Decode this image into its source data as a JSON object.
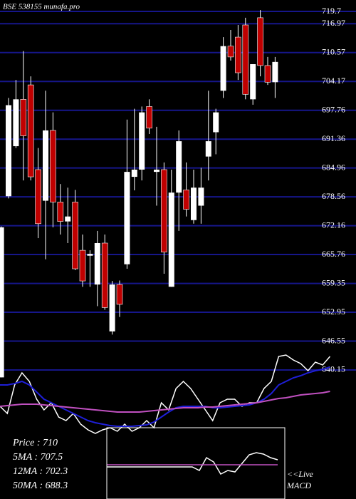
{
  "chart_data": [
    {
      "type": "candlestick",
      "title": "BSE 538155 munafa.pro",
      "ylim": [
        636,
        722
      ],
      "yticks": [
        719.7,
        716.97,
        710.57,
        704.17,
        697.76,
        691.36,
        684.96,
        678.56,
        672.16,
        665.76,
        659.35,
        652.95,
        646.55,
        640.15
      ],
      "grid": true,
      "grid_color": "#16168a",
      "up_color": "#ffffff",
      "down_color": "#c00000",
      "candles": [
        {
          "open": 638.5,
          "high": 672,
          "low": 638.5,
          "close": 671.8
        },
        {
          "open": 678.7,
          "high": 700.5,
          "low": 678.2,
          "close": 698.9
        },
        {
          "open": 689.8,
          "high": 704.5,
          "low": 689.4,
          "close": 700.2
        },
        {
          "open": 700.2,
          "high": 710.9,
          "low": 682.2,
          "close": 692.1
        },
        {
          "open": 703.4,
          "high": 705.3,
          "low": 682.2,
          "close": 683.0
        },
        {
          "open": 684.6,
          "high": 689.4,
          "low": 669.4,
          "close": 672.6
        },
        {
          "open": 677.7,
          "high": 702.1,
          "low": 664.7,
          "close": 693.3
        },
        {
          "open": 693.3,
          "high": 697.3,
          "low": 671.8,
          "close": 677.4
        },
        {
          "open": 677.4,
          "high": 681.4,
          "low": 670.2,
          "close": 673.1
        },
        {
          "open": 673.1,
          "high": 680.6,
          "low": 668.3,
          "close": 674.2
        },
        {
          "open": 677.4,
          "high": 680.1,
          "low": 662.3,
          "close": 662.6
        },
        {
          "open": 666.7,
          "high": 670.2,
          "low": 658.6,
          "close": 659.9
        },
        {
          "open": 665.5,
          "high": 666.7,
          "low": 658.6,
          "close": 665.9
        },
        {
          "open": 659.1,
          "high": 671.0,
          "low": 654.3,
          "close": 668.3
        },
        {
          "open": 668.3,
          "high": 670.2,
          "low": 653.5,
          "close": 654.0
        },
        {
          "open": 648.7,
          "high": 659.9,
          "low": 648.0,
          "close": 659.1
        },
        {
          "open": 659.1,
          "high": 660.0,
          "low": 651.9,
          "close": 654.7
        },
        {
          "open": 663.6,
          "high": 695.7,
          "low": 662.6,
          "close": 684.1
        },
        {
          "open": 683.0,
          "high": 698.1,
          "low": 680.0,
          "close": 684.6
        },
        {
          "open": 684.6,
          "high": 698.6,
          "low": 682.2,
          "close": 697.3
        },
        {
          "open": 698.6,
          "high": 700.2,
          "low": 692.5,
          "close": 693.8
        },
        {
          "open": 684.1,
          "high": 694.1,
          "low": 676.6,
          "close": 684.6
        },
        {
          "open": 684.6,
          "high": 686.2,
          "low": 661.5,
          "close": 666.3
        },
        {
          "open": 658.6,
          "high": 684.6,
          "low": 658.6,
          "close": 679.5
        },
        {
          "open": 679.5,
          "high": 693.3,
          "low": 671.0,
          "close": 690.9
        },
        {
          "open": 680.1,
          "high": 686.2,
          "low": 674.2,
          "close": 675.8
        },
        {
          "open": 673.4,
          "high": 684.6,
          "low": 672.6,
          "close": 680.6
        },
        {
          "open": 676.6,
          "high": 685.0,
          "low": 672.6,
          "close": 680.6
        },
        {
          "open": 687.5,
          "high": 702.1,
          "low": 682.2,
          "close": 690.9
        },
        {
          "open": 692.9,
          "high": 698.1,
          "low": 688.0,
          "close": 697.3
        },
        {
          "open": 702.1,
          "high": 714.0,
          "low": 700.5,
          "close": 712.0
        },
        {
          "open": 712.0,
          "high": 715.6,
          "low": 708.8,
          "close": 709.6
        },
        {
          "open": 714.0,
          "high": 716.7,
          "low": 704.5,
          "close": 706.1
        },
        {
          "open": 716.7,
          "high": 718.3,
          "low": 700.2,
          "close": 701.3
        },
        {
          "open": 700.2,
          "high": 708.0,
          "low": 699.0,
          "close": 708.0
        },
        {
          "open": 718.3,
          "high": 720.0,
          "low": 705.3,
          "close": 707.7
        },
        {
          "open": 707.7,
          "high": 709.6,
          "low": 703.4,
          "close": 704.0
        },
        {
          "open": 704.0,
          "high": 709.6,
          "low": 700.5,
          "close": 708.5
        }
      ],
      "info": [
        "Price   : 710",
        "5MA : 707.5",
        "12MA : 702.3",
        "50MA : 688.3"
      ]
    },
    {
      "type": "line",
      "ylim": [
        0,
        130
      ],
      "series": [
        {
          "color": "#ffffff",
          "values": [
            50,
            40,
            80,
            97,
            85,
            60,
            45,
            55,
            35,
            30,
            40,
            25,
            17,
            12,
            17,
            20,
            15,
            25,
            15,
            20,
            30,
            20,
            55,
            45,
            75,
            85,
            75,
            60,
            45,
            30,
            55,
            60,
            60,
            50,
            55,
            55,
            75,
            85,
            120,
            122,
            115,
            110,
            100,
            112,
            108,
            120
          ]
        },
        {
          "color": "#1f1fd8",
          "values": [
            80,
            80,
            82,
            85,
            80,
            70,
            60,
            55,
            50,
            45,
            40,
            35,
            30,
            27,
            25,
            23,
            22,
            22,
            22,
            23,
            24,
            28,
            35,
            42,
            48,
            50,
            50,
            50,
            50,
            48,
            48,
            49,
            50,
            51,
            52,
            55,
            60,
            68,
            80,
            85,
            90,
            93,
            97,
            100,
            102,
            105
          ]
        },
        {
          "color": "#c050c0",
          "values": [
            50,
            51,
            52,
            53,
            53,
            53,
            52,
            51,
            50,
            49,
            48,
            47,
            46,
            45,
            44,
            43,
            42,
            42,
            42,
            42,
            43,
            44,
            45,
            46,
            47,
            48,
            48,
            48,
            49,
            49,
            50,
            51,
            52,
            53,
            54,
            55,
            57,
            59,
            61,
            62,
            64,
            66,
            67,
            68,
            69,
            71
          ]
        }
      ]
    },
    {
      "type": "macd",
      "ylim": [
        0,
        100
      ],
      "label_top": "<<Live",
      "label_bottom": "MACD",
      "series": [
        {
          "color": "#ffffff",
          "values": [
            45,
            45,
            45,
            45,
            45,
            45,
            45,
            45,
            45,
            45,
            45,
            45,
            45,
            40,
            58,
            52,
            35,
            40,
            38,
            50,
            62,
            65,
            63,
            58,
            55
          ]
        },
        {
          "color": "#c050c0",
          "values": [
            48,
            48
          ]
        }
      ]
    }
  ]
}
